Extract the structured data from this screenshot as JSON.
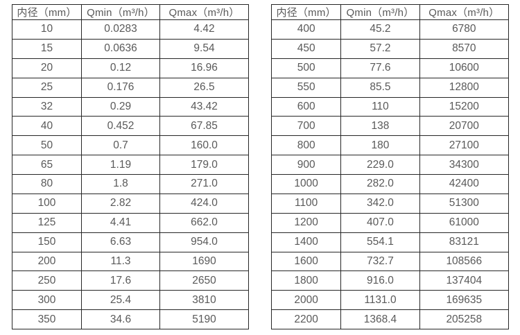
{
  "colors": {
    "background": "#ffffff",
    "border": "#262626",
    "text": "#595959"
  },
  "chart_data": [
    {
      "type": "table",
      "title": "",
      "columns": [
        "内径（mm）",
        "Qmin（m³/h）",
        "Qmax（m³/h）"
      ],
      "rows": [
        [
          "10",
          "0.0283",
          "4.42"
        ],
        [
          "15",
          "0.0636",
          "9.54"
        ],
        [
          "20",
          "0.12",
          "16.96"
        ],
        [
          "25",
          "0.176",
          "26.5"
        ],
        [
          "32",
          "0.29",
          "43.42"
        ],
        [
          "40",
          "0.452",
          "67.85"
        ],
        [
          "50",
          "0.7",
          "160.0"
        ],
        [
          "65",
          "1.19",
          "179.0"
        ],
        [
          "80",
          "1.8",
          "271.0"
        ],
        [
          "100",
          "2.82",
          "424.0"
        ],
        [
          "125",
          "4.41",
          "662.0"
        ],
        [
          "150",
          "6.63",
          "954.0"
        ],
        [
          "200",
          "11.3",
          "1690"
        ],
        [
          "250",
          "17.6",
          "2650"
        ],
        [
          "300",
          "25.4",
          "3810"
        ],
        [
          "350",
          "34.6",
          "5190"
        ]
      ]
    },
    {
      "type": "table",
      "title": "",
      "columns": [
        "内径（mm）",
        "Qmin（m³/h）",
        "Qmax（m³/h）"
      ],
      "rows": [
        [
          "400",
          "45.2",
          "6780"
        ],
        [
          "450",
          "57.2",
          "8570"
        ],
        [
          "500",
          "77.6",
          "10600"
        ],
        [
          "550",
          "85.5",
          "12800"
        ],
        [
          "600",
          "110",
          "15200"
        ],
        [
          "700",
          "138",
          "20700"
        ],
        [
          "800",
          "180",
          "27100"
        ],
        [
          "900",
          "229.0",
          "34300"
        ],
        [
          "1000",
          "282.0",
          "42400"
        ],
        [
          "1100",
          "342.0",
          "51300"
        ],
        [
          "1200",
          "407.0",
          "61000"
        ],
        [
          "1400",
          "554.1",
          "83121"
        ],
        [
          "1600",
          "732.7",
          "108566"
        ],
        [
          "1800",
          "916.0",
          "137404"
        ],
        [
          "2000",
          "1131.0",
          "169635"
        ],
        [
          "2200",
          "1368.4",
          "205258"
        ]
      ]
    }
  ]
}
